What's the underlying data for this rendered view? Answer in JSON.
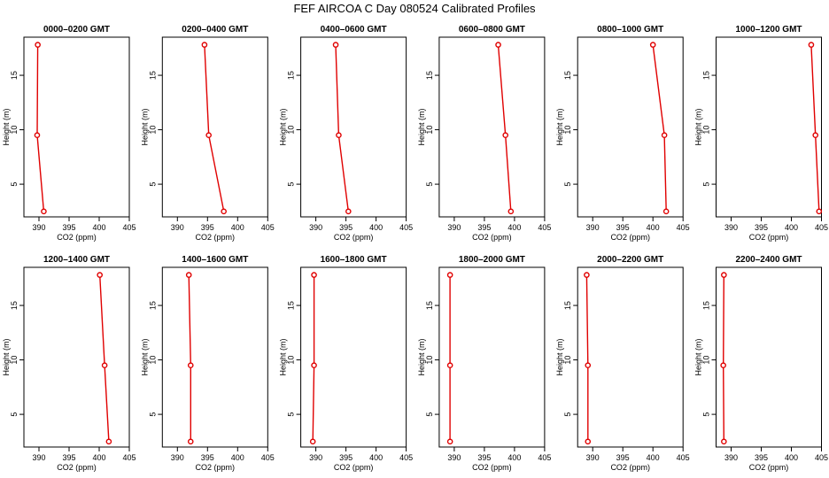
{
  "title": "FEF AIRCOA C  Day 080524  Calibrated Profiles",
  "colors": {
    "line": "#e00000",
    "point": "#e00000",
    "axis": "#000000"
  },
  "chart_data": [
    {
      "type": "line",
      "title": "0000–0200 GMT",
      "xlabel": "CO2 (ppm)",
      "ylabel": "Height (m)",
      "xlim": [
        387.5,
        405
      ],
      "ylim": [
        2,
        18.5
      ],
      "xticks": [
        390,
        395,
        400,
        405
      ],
      "yticks": [
        5,
        10,
        15
      ],
      "x": [
        390.8,
        389.7,
        389.8
      ],
      "y": [
        2.5,
        9.5,
        17.8
      ]
    },
    {
      "type": "line",
      "title": "0200–0400 GMT",
      "xlabel": "CO2 (ppm)",
      "ylabel": "Height (m)",
      "xlim": [
        387.5,
        405
      ],
      "ylim": [
        2,
        18.5
      ],
      "xticks": [
        390,
        395,
        400,
        405
      ],
      "yticks": [
        5,
        10,
        15
      ],
      "x": [
        397.7,
        395.2,
        394.5
      ],
      "y": [
        2.5,
        9.5,
        17.8
      ]
    },
    {
      "type": "line",
      "title": "0400–0600 GMT",
      "xlabel": "CO2 (ppm)",
      "ylabel": "Height (m)",
      "xlim": [
        387.5,
        405
      ],
      "ylim": [
        2,
        18.5
      ],
      "xticks": [
        390,
        395,
        400,
        405
      ],
      "yticks": [
        5,
        10,
        15
      ],
      "x": [
        395.4,
        393.8,
        393.3
      ],
      "y": [
        2.5,
        9.5,
        17.8
      ]
    },
    {
      "type": "line",
      "title": "0600–0800 GMT",
      "xlabel": "CO2 (ppm)",
      "ylabel": "Height (m)",
      "xlim": [
        387.5,
        405
      ],
      "ylim": [
        2,
        18.5
      ],
      "xticks": [
        390,
        395,
        400,
        405
      ],
      "yticks": [
        5,
        10,
        15
      ],
      "x": [
        399.4,
        398.5,
        397.3
      ],
      "y": [
        2.5,
        9.5,
        17.8
      ]
    },
    {
      "type": "line",
      "title": "0800–1000 GMT",
      "xlabel": "CO2 (ppm)",
      "ylabel": "Height (m)",
      "xlim": [
        387.5,
        405
      ],
      "ylim": [
        2,
        18.5
      ],
      "xticks": [
        390,
        395,
        400,
        405
      ],
      "yticks": [
        5,
        10,
        15
      ],
      "x": [
        402.2,
        401.9,
        400.0
      ],
      "y": [
        2.5,
        9.5,
        17.8
      ]
    },
    {
      "type": "line",
      "title": "1000–1200 GMT",
      "xlabel": "CO2 (ppm)",
      "ylabel": "Height (m)",
      "xlim": [
        387.5,
        405
      ],
      "ylim": [
        2,
        18.5
      ],
      "xticks": [
        390,
        395,
        400,
        405
      ],
      "yticks": [
        5,
        10,
        15
      ],
      "x": [
        404.6,
        404.0,
        403.3
      ],
      "y": [
        2.5,
        9.5,
        17.8
      ]
    },
    {
      "type": "line",
      "title": "1200–1400 GMT",
      "xlabel": "CO2 (ppm)",
      "ylabel": "Height (m)",
      "xlim": [
        387.5,
        405
      ],
      "ylim": [
        2,
        18.5
      ],
      "xticks": [
        390,
        395,
        400,
        405
      ],
      "yticks": [
        5,
        10,
        15
      ],
      "x": [
        401.6,
        400.9,
        400.1
      ],
      "y": [
        2.5,
        9.5,
        17.8
      ]
    },
    {
      "type": "line",
      "title": "1400–1600 GMT",
      "xlabel": "CO2 (ppm)",
      "ylabel": "Height (m)",
      "xlim": [
        387.5,
        405
      ],
      "ylim": [
        2,
        18.5
      ],
      "xticks": [
        390,
        395,
        400,
        405
      ],
      "yticks": [
        5,
        10,
        15
      ],
      "x": [
        392.2,
        392.2,
        391.9
      ],
      "y": [
        2.5,
        9.5,
        17.8
      ]
    },
    {
      "type": "line",
      "title": "1600–1800 GMT",
      "xlabel": "CO2 (ppm)",
      "ylabel": "Height (m)",
      "xlim": [
        387.5,
        405
      ],
      "ylim": [
        2,
        18.5
      ],
      "xticks": [
        390,
        395,
        400,
        405
      ],
      "yticks": [
        5,
        10,
        15
      ],
      "x": [
        389.5,
        389.7,
        389.7
      ],
      "y": [
        2.5,
        9.5,
        17.8
      ]
    },
    {
      "type": "line",
      "title": "1800–2000 GMT",
      "xlabel": "CO2 (ppm)",
      "ylabel": "Height (m)",
      "xlim": [
        387.5,
        405
      ],
      "ylim": [
        2,
        18.5
      ],
      "xticks": [
        390,
        395,
        400,
        405
      ],
      "yticks": [
        5,
        10,
        15
      ],
      "x": [
        389.3,
        389.3,
        389.3
      ],
      "y": [
        2.5,
        9.5,
        17.8
      ]
    },
    {
      "type": "line",
      "title": "2000–2200 GMT",
      "xlabel": "CO2 (ppm)",
      "ylabel": "Height (m)",
      "xlim": [
        387.5,
        405
      ],
      "ylim": [
        2,
        18.5
      ],
      "xticks": [
        390,
        395,
        400,
        405
      ],
      "yticks": [
        5,
        10,
        15
      ],
      "x": [
        389.2,
        389.2,
        389.0
      ],
      "y": [
        2.5,
        9.5,
        17.8
      ]
    },
    {
      "type": "line",
      "title": "2200–2400 GMT",
      "xlabel": "CO2 (ppm)",
      "ylabel": "Height (m)",
      "xlim": [
        387.5,
        405
      ],
      "ylim": [
        2,
        18.5
      ],
      "xticks": [
        390,
        395,
        400,
        405
      ],
      "yticks": [
        5,
        10,
        15
      ],
      "x": [
        388.8,
        388.7,
        388.8
      ],
      "y": [
        2.5,
        9.5,
        17.8
      ]
    }
  ]
}
